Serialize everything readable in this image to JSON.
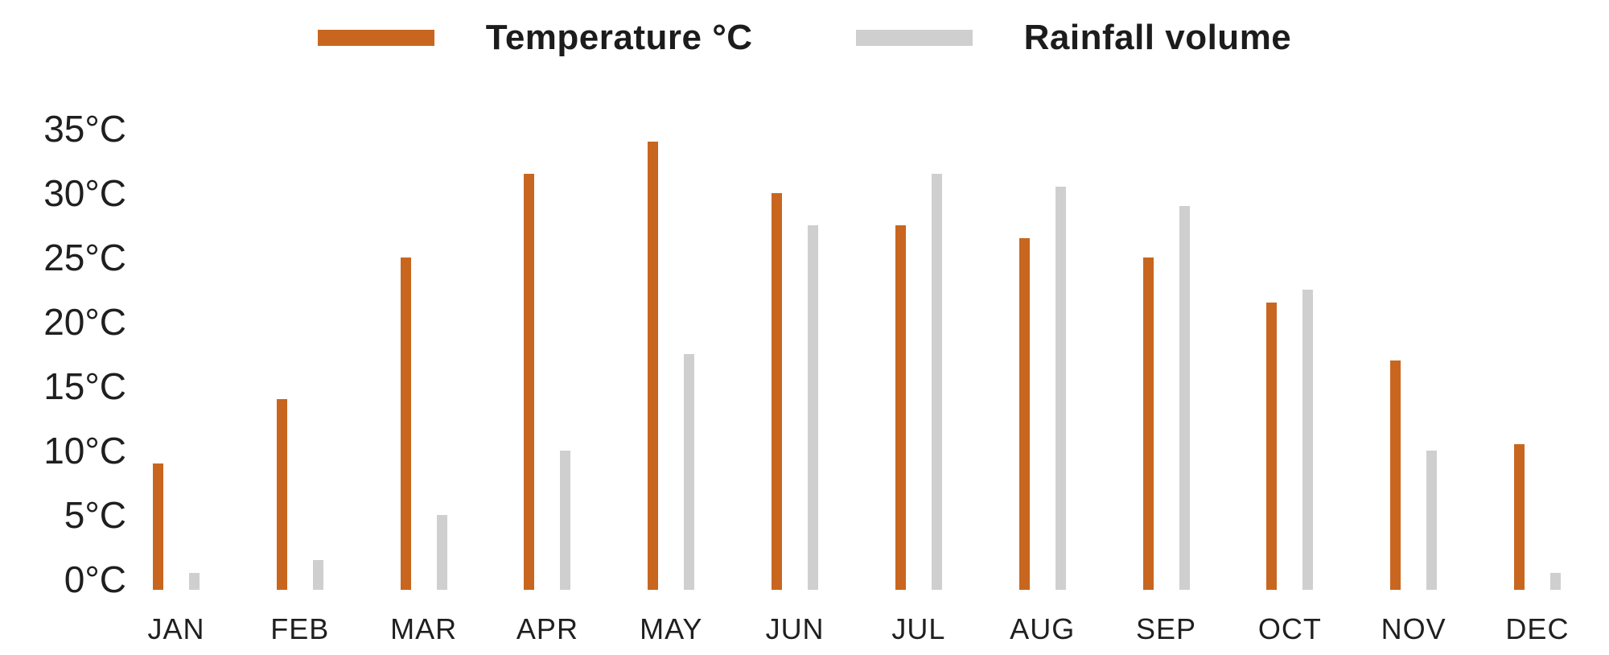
{
  "legend": {
    "items": [
      {
        "label": "Temperature °C",
        "color": "#C8661F"
      },
      {
        "label": "Rainfall volume",
        "color": "#CFCFCF"
      }
    ]
  },
  "y_axis": {
    "tick_labels": [
      "35°C",
      "30°C",
      "25°C",
      "20°C",
      "15°C",
      "10°C",
      "5°C",
      "0°C"
    ],
    "tick_values": [
      35,
      30,
      25,
      20,
      15,
      10,
      5,
      0
    ]
  },
  "chart_data": {
    "type": "bar",
    "title": "",
    "xlabel": "",
    "ylabel": "",
    "categories": [
      "JAN",
      "FEB",
      "MAR",
      "APR",
      "MAY",
      "JUN",
      "JUL",
      "AUG",
      "SEP",
      "OCT",
      "NOV",
      "DEC"
    ],
    "series": [
      {
        "name": "Temperature °C",
        "color": "#C8661F",
        "values": [
          9,
          14,
          25,
          31.5,
          34,
          30,
          27.5,
          26.5,
          25,
          21.5,
          17,
          10.5
        ]
      },
      {
        "name": "Rainfall volume",
        "color": "#CFCFCF",
        "values": [
          0.5,
          1.5,
          5,
          10,
          17.5,
          27.5,
          31.5,
          30.5,
          29,
          22.5,
          10,
          0.5
        ]
      }
    ],
    "ylim": [
      0,
      35
    ],
    "grid": false,
    "axis_lines": false,
    "legend_position": "top-center",
    "colors": {
      "temperature": "#C8661F",
      "rainfall": "#CFCFCF",
      "text": "#1f1f1f"
    }
  }
}
